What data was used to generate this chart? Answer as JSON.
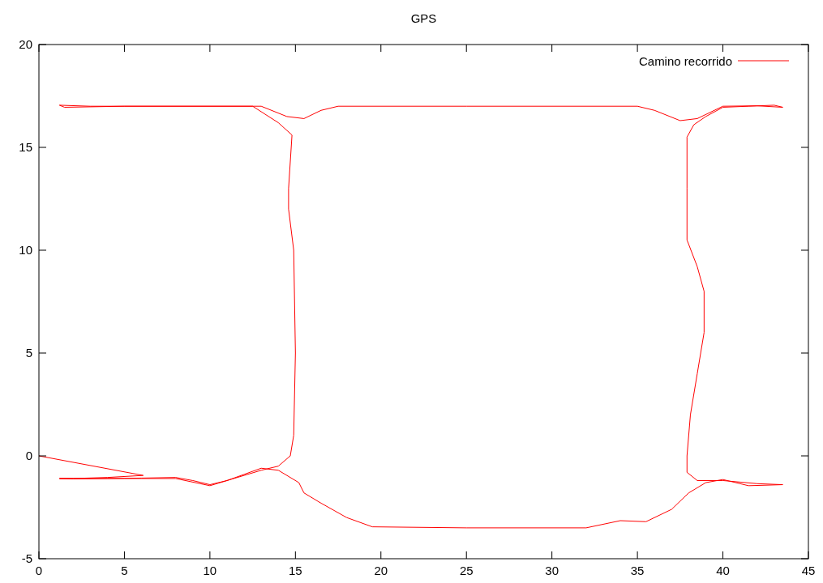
{
  "chart_data": {
    "type": "line",
    "title": "GPS",
    "xlim": [
      0,
      45
    ],
    "ylim": [
      -5,
      20
    ],
    "xticks": [
      0,
      5,
      10,
      15,
      20,
      25,
      30,
      35,
      40,
      45
    ],
    "yticks": [
      -5,
      0,
      5,
      10,
      15,
      20
    ],
    "legend": "top right",
    "grid": false,
    "marker": "none",
    "line_style": "solid",
    "series": [
      {
        "name": "Camino recorrido",
        "color": "#ff0000",
        "x": [
          0,
          6.1,
          4,
          2,
          1.2,
          2,
          4,
          6,
          8,
          9,
          10,
          11,
          12,
          13,
          14,
          15.2,
          15.5,
          16.5,
          18,
          19.5,
          25,
          32,
          34,
          35.5,
          37,
          38,
          39,
          40,
          41.5,
          43.5,
          42,
          40,
          38.5,
          37.9,
          37.9,
          38.1,
          38.5,
          38.9,
          38.9,
          38.5,
          37.9,
          37.9,
          37.9,
          38.3,
          39,
          40,
          41.5,
          43,
          43.5,
          42,
          40,
          38.5,
          37.5,
          36,
          35,
          25,
          17.5,
          16.5,
          15.5,
          14.5,
          13,
          5,
          1.5,
          1.2,
          3,
          12.5,
          14,
          14.8,
          14.6,
          14.6,
          14.9,
          15,
          14.9,
          14.7,
          14,
          13,
          11,
          10,
          8,
          5,
          1.2
        ],
        "values": [
          0,
          -0.95,
          -1.05,
          -1.1,
          -1.1,
          -1.12,
          -1.1,
          -1.08,
          -1.05,
          -1.2,
          -1.4,
          -1.2,
          -0.9,
          -0.6,
          -0.7,
          -1.3,
          -1.8,
          -2.3,
          -3,
          -3.45,
          -3.5,
          -3.5,
          -3.15,
          -3.2,
          -2.6,
          -1.8,
          -1.3,
          -1.15,
          -1.45,
          -1.4,
          -1.35,
          -1.2,
          -1.2,
          -0.8,
          0,
          2,
          4,
          6,
          8,
          9.2,
          10.5,
          13,
          15.5,
          16.1,
          16.5,
          16.95,
          17,
          17.05,
          16.95,
          17.02,
          17,
          16.4,
          16.3,
          16.8,
          17,
          17,
          17,
          16.8,
          16.4,
          16.5,
          17,
          17,
          16.95,
          17.05,
          17,
          17,
          16.2,
          15.6,
          13,
          12,
          10,
          5,
          1,
          0,
          -0.5,
          -0.7,
          -1.2,
          -1.45,
          -1.1,
          -1.1,
          -1.1
        ]
      }
    ]
  }
}
